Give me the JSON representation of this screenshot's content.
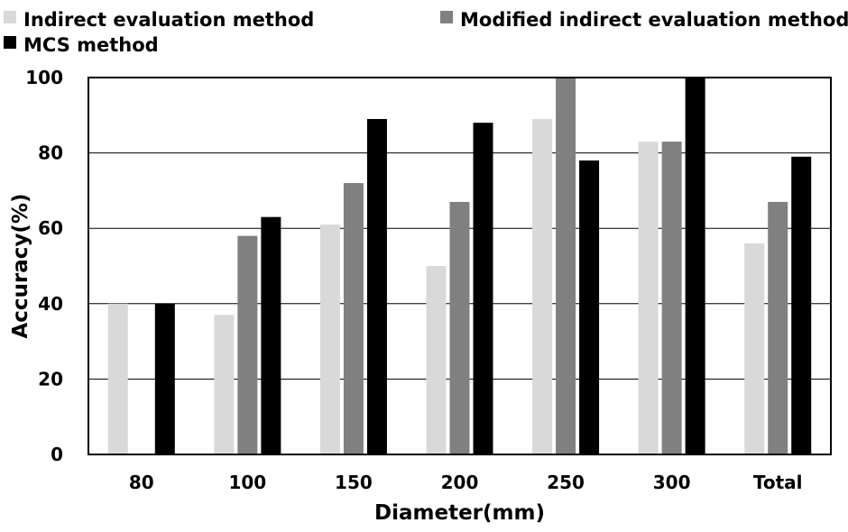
{
  "chart_data": {
    "type": "bar",
    "title": "",
    "xlabel": "Diameter(mm)",
    "ylabel": "Accuracy(%)",
    "ylim": [
      0,
      100
    ],
    "yticks": [
      0,
      20,
      40,
      60,
      80,
      100
    ],
    "grid": true,
    "legend_position": "top",
    "categories": [
      "80",
      "100",
      "150",
      "200",
      "250",
      "300",
      "Total"
    ],
    "series": [
      {
        "name": "Indirect evaluation method",
        "color": "#d9d9d9",
        "values": [
          40,
          37,
          61,
          50,
          89,
          83,
          56
        ]
      },
      {
        "name": "Modified indirect evaluation method",
        "color": "#808080",
        "values": [
          0,
          58,
          72,
          67,
          100,
          83,
          67
        ]
      },
      {
        "name": "MCS method",
        "color": "#000000",
        "values": [
          40,
          63,
          89,
          88,
          78,
          100,
          79
        ]
      }
    ]
  }
}
